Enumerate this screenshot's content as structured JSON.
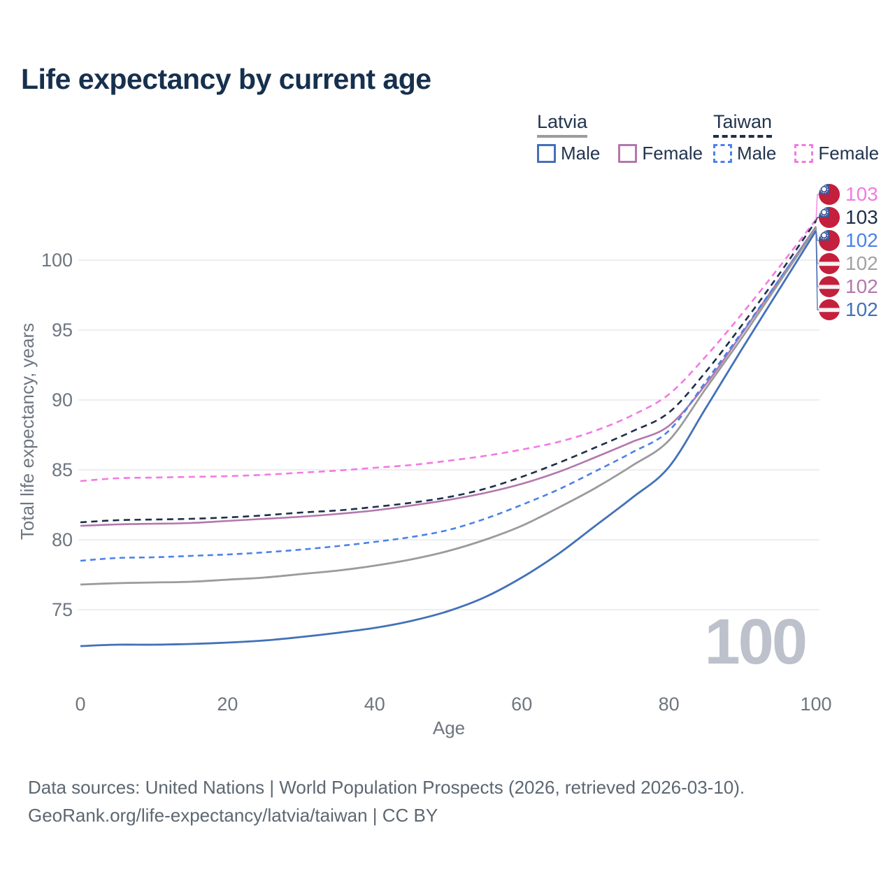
{
  "title": "Life expectancy by current age",
  "legend": {
    "groups": [
      {
        "label": "Latvia",
        "line_style": "solid",
        "underline_color": "#9c9c9c",
        "items": [
          {
            "label": "Male",
            "color": "#4371b8",
            "dashed": false
          },
          {
            "label": "Female",
            "color": "#b377ad",
            "dashed": false
          }
        ]
      },
      {
        "label": "Taiwan",
        "line_style": "dashed",
        "underline_color": "#1d2f48",
        "items": [
          {
            "label": "Male",
            "color": "#4b82e8",
            "dashed": true
          },
          {
            "label": "Female",
            "color": "#f37ae0",
            "dashed": true
          }
        ]
      }
    ]
  },
  "chart_data": {
    "type": "line",
    "title": "Life expectancy by current age",
    "xlabel": "Age",
    "ylabel": "Total life expectancy, years",
    "x": [
      0,
      5,
      10,
      15,
      20,
      25,
      30,
      35,
      40,
      45,
      50,
      55,
      60,
      65,
      70,
      75,
      80,
      85,
      90,
      95,
      100
    ],
    "xticks": [
      "0",
      "20",
      "40",
      "60",
      "80",
      "100"
    ],
    "xtick_values": [
      0,
      20,
      40,
      60,
      80,
      100
    ],
    "yticks": [
      "75",
      "80",
      "85",
      "90",
      "95",
      "100"
    ],
    "ytick_values": [
      75,
      80,
      85,
      90,
      95,
      100
    ],
    "xlim": [
      0,
      100
    ],
    "ylim": [
      71.5,
      104
    ],
    "grid": true,
    "legend_position": "top-right",
    "series": [
      {
        "name": "Taiwan Female",
        "country": "Taiwan",
        "sex": "Female",
        "color": "#f37ae0",
        "dash": "9 6.5",
        "width": 2.6,
        "row": 0,
        "values": [
          84.2,
          84.4,
          84.45,
          84.5,
          84.55,
          84.65,
          84.8,
          84.95,
          85.15,
          85.35,
          85.65,
          86.0,
          86.45,
          87.0,
          87.8,
          88.9,
          90.4,
          93.1,
          96.2,
          99.5,
          102.9
        ]
      },
      {
        "name": "Taiwan Both Sexes",
        "country": "Taiwan",
        "sex": "Both",
        "color": "#1d2f48",
        "dash": "9 6.5",
        "width": 2.6,
        "row": 1,
        "values": [
          81.25,
          81.4,
          81.45,
          81.5,
          81.6,
          81.75,
          81.95,
          82.1,
          82.35,
          82.65,
          83.05,
          83.65,
          84.5,
          85.5,
          86.6,
          87.75,
          89.1,
          92.0,
          95.4,
          99.0,
          102.8
        ]
      },
      {
        "name": "Latvia Female",
        "country": "Latvia",
        "sex": "Female",
        "color": "#b377ad",
        "dash": null,
        "width": 2.6,
        "row": 4,
        "values": [
          81.0,
          81.1,
          81.15,
          81.2,
          81.35,
          81.5,
          81.65,
          81.85,
          82.1,
          82.45,
          82.85,
          83.35,
          84.0,
          84.85,
          85.9,
          87.0,
          88.15,
          91.1,
          94.8,
          98.6,
          102.4
        ]
      },
      {
        "name": "Taiwan Male",
        "country": "Taiwan",
        "sex": "Male",
        "color": "#4b82e8",
        "dash": "8 6",
        "width": 2.6,
        "row": 2,
        "values": [
          78.5,
          78.7,
          78.75,
          78.85,
          78.95,
          79.1,
          79.3,
          79.55,
          79.85,
          80.2,
          80.7,
          81.5,
          82.5,
          83.6,
          84.9,
          86.25,
          87.8,
          91.3,
          94.9,
          98.6,
          102.3
        ]
      },
      {
        "name": "Latvia Both Sexes",
        "country": "Latvia",
        "sex": "Both",
        "color": "#9b9b9b",
        "dash": null,
        "width": 2.8,
        "row": 3,
        "values": [
          76.8,
          76.9,
          76.95,
          77.0,
          77.15,
          77.3,
          77.55,
          77.8,
          78.15,
          78.6,
          79.2,
          80.0,
          81.0,
          82.3,
          83.7,
          85.3,
          87.1,
          90.8,
          94.5,
          98.4,
          102.3
        ]
      },
      {
        "name": "Latvia Male",
        "country": "Latvia",
        "sex": "Male",
        "color": "#4371b8",
        "dash": null,
        "width": 2.8,
        "row": 5,
        "values": [
          72.4,
          72.5,
          72.5,
          72.55,
          72.65,
          72.8,
          73.05,
          73.35,
          73.7,
          74.2,
          74.9,
          75.9,
          77.3,
          79.0,
          81.0,
          83.0,
          85.2,
          89.4,
          93.7,
          97.9,
          102.1
        ]
      }
    ]
  },
  "end_labels": [
    {
      "value": "103",
      "color": "#f37ae0",
      "flag": "taiwan"
    },
    {
      "value": "103",
      "color": "#1d2f48",
      "flag": "taiwan"
    },
    {
      "value": "102",
      "color": "#4b82e8",
      "flag": "taiwan"
    },
    {
      "value": "102",
      "color": "#a2a2a2",
      "flag": "latvia"
    },
    {
      "value": "102",
      "color": "#b377ad",
      "flag": "latvia"
    },
    {
      "value": "102",
      "color": "#4371b8",
      "flag": "latvia"
    }
  ],
  "watermark": "100",
  "footer": {
    "line1": "Data sources: United Nations | World Population Prospects (2026, retrieved 2026-03-10).",
    "line2": "GeoRank.org/life-expectancy/latvia/taiwan | CC BY"
  }
}
